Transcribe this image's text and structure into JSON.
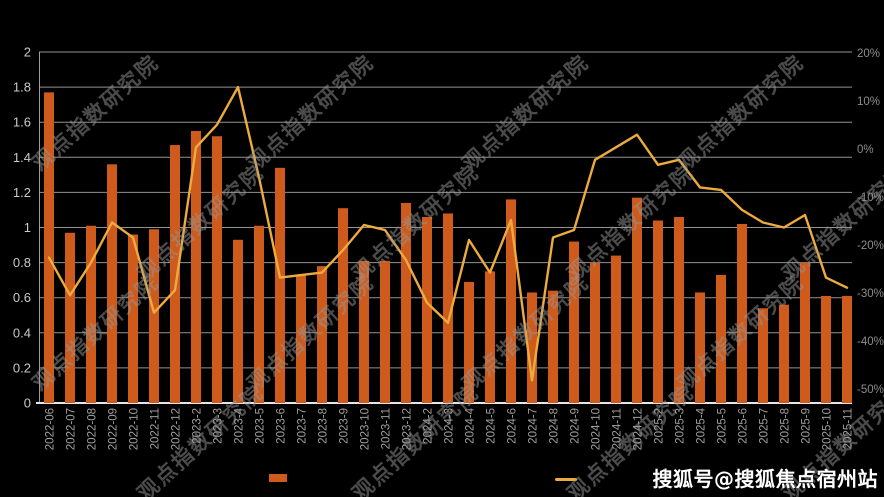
{
  "watermark": {
    "text": "观点指数研究院",
    "color": "#969696"
  },
  "footer": {
    "source_label": "搜狐号@搜狐焦点宿州站"
  },
  "legend": {
    "items": [
      {
        "name": "bar-series-swatch",
        "swatch_color": "#CE5A1B"
      },
      {
        "name": "line-series-swatch",
        "swatch_color": "#EDAB3D"
      }
    ]
  },
  "chart_data": {
    "type": "bar",
    "subtype": "bar+line combo, dual axis",
    "background": "#000000",
    "grid": true,
    "categories": [
      "2022-06",
      "2022-07",
      "2022-08",
      "2022-09",
      "2022-10",
      "2022-11",
      "2022-12",
      "2023-2",
      "2023-3",
      "2023-4",
      "2023-5",
      "2023-6",
      "2023-7",
      "2023-8",
      "2023-9",
      "2023-10",
      "2023-11",
      "2023-12",
      "2024-2",
      "2024-3",
      "2024-4",
      "2024-5",
      "2024-6",
      "2024-7",
      "2024-8",
      "2024-9",
      "2024-10",
      "2024-11",
      "2024-12",
      "2025-2",
      "2025-3",
      "2025-4",
      "2025-5",
      "2025-6",
      "2025-7",
      "2025-8",
      "2025-9",
      "2025-10",
      "2025-11"
    ],
    "series": [
      {
        "name": "monthly-value-bars",
        "type": "bar",
        "axis": "left",
        "color": "#CE5A1B",
        "values": [
          1.77,
          0.97,
          1.01,
          1.36,
          0.96,
          0.99,
          1.47,
          1.55,
          1.52,
          0.93,
          1.01,
          1.34,
          0.73,
          0.78,
          1.11,
          0.81,
          0.81,
          1.14,
          1.06,
          1.08,
          0.69,
          0.75,
          1.16,
          0.63,
          0.64,
          0.92,
          0.8,
          0.84,
          1.17,
          1.04,
          1.06,
          0.63,
          0.73,
          1.02,
          0.54,
          0.56,
          0.8,
          0.61,
          0.61
        ]
      },
      {
        "name": "yoy-change-line",
        "type": "line",
        "axis": "right",
        "color": "#EDAB3D",
        "values": [
          -21,
          -28.5,
          -22,
          -14,
          -17,
          -32,
          -27.5,
          1,
          5.5,
          13,
          -5,
          -25,
          -24.5,
          -24,
          -19.5,
          -14.5,
          -15.5,
          -21.5,
          -30,
          -34,
          -17.5,
          -24,
          -13.5,
          -45.5,
          -17,
          -15.5,
          -1.5,
          1,
          3.5,
          -2.5,
          -1.5,
          -7,
          -7.5,
          -11.5,
          -14,
          -15,
          -12.5,
          -25,
          -27
        ]
      }
    ],
    "left_axis": {
      "min": 0,
      "max": 2,
      "tick_labels": [
        "2",
        "1.8",
        "1.6",
        "1.4",
        "1.2",
        "1",
        "0.8",
        "0.6",
        "0.4",
        "0.2",
        "0"
      ]
    },
    "right_axis": {
      "min": -50,
      "max": 20,
      "unit": "%",
      "tick_labels": [
        "20%",
        "10%",
        "0%",
        "-10%",
        "-20%",
        "-30%",
        "-40%",
        "-50%"
      ]
    },
    "title": "",
    "xlabel": "",
    "ylabel": ""
  },
  "colors": {
    "gridline": "#ADADAD",
    "axis_line": "#E6E6E6",
    "left_tick_text": "#C8C8C8",
    "right_tick_text": "#8D8D8D",
    "x_tick_text": "#9E9E9E"
  }
}
